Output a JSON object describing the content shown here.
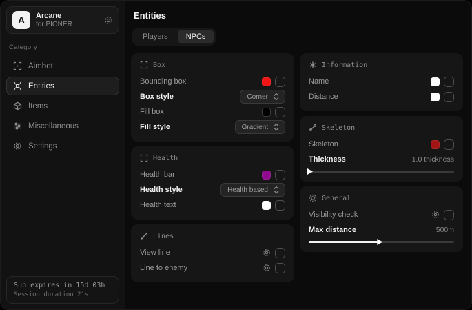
{
  "window": {
    "title": "Arcane"
  },
  "colors": {
    "accent_red": "#f01414",
    "accent_purple": "#8e0b8e",
    "skeleton_red": "#a31515",
    "swatch_white": "#ffffff",
    "swatch_black": "#000000",
    "card_bg": "#161616",
    "sidebar_bg": "#121212"
  },
  "sidebar": {
    "logo_letter": "A",
    "app_name": "Arcane",
    "app_subtitle": "for PIONER",
    "category_label": "Category",
    "items": [
      {
        "label": "Aimbot",
        "icon": "crosshair-icon",
        "active": false
      },
      {
        "label": "Entities",
        "icon": "entities-icon",
        "active": true
      },
      {
        "label": "Items",
        "icon": "cube-icon",
        "active": false
      },
      {
        "label": "Miscellaneous",
        "icon": "sliders-icon",
        "active": false
      },
      {
        "label": "Settings",
        "icon": "gear-icon",
        "active": false
      }
    ],
    "footer": {
      "line1": "Sub expires in 15d 03h",
      "line2": "Session duration 21s"
    }
  },
  "main": {
    "title": "Entities",
    "tabs": [
      {
        "label": "Players",
        "active": false
      },
      {
        "label": "NPCs",
        "active": true
      }
    ],
    "columns": [
      {
        "cards": [
          {
            "title": "Box",
            "icon": "scan-brackets-icon",
            "rows": [
              {
                "type": "color",
                "label": "Bounding box",
                "color": "#f01414",
                "checked": false
              },
              {
                "type": "select",
                "label": "Box style",
                "value": "Corner"
              },
              {
                "type": "color",
                "label": "Fill box",
                "color": "#000000",
                "checked": false
              },
              {
                "type": "select",
                "label": "Fill style",
                "value": "Gradient"
              }
            ]
          },
          {
            "title": "Health",
            "icon": "scan-brackets-icon",
            "rows": [
              {
                "type": "color",
                "label": "Health bar",
                "color": "#8e0b8e",
                "checked": false
              },
              {
                "type": "select",
                "label": "Health style",
                "value": "Health based"
              },
              {
                "type": "color",
                "label": "Health text",
                "color": "#ffffff",
                "checked": false
              }
            ]
          },
          {
            "title": "Lines",
            "icon": "pencil-line-icon",
            "rows": [
              {
                "type": "gear",
                "label": "View line",
                "checked": false
              },
              {
                "type": "gear",
                "label": "Line to enemy",
                "checked": false
              }
            ]
          }
        ]
      },
      {
        "cards": [
          {
            "title": "Information",
            "icon": "asterisk-icon",
            "rows": [
              {
                "type": "color",
                "label": "Name",
                "color": "#ffffff",
                "checked": false
              },
              {
                "type": "color",
                "label": "Distance",
                "color": "#ffffff",
                "checked": false
              }
            ]
          },
          {
            "title": "Skeleton",
            "icon": "bone-icon",
            "rows": [
              {
                "type": "color",
                "label": "Skeleton",
                "color": "#a31515",
                "checked": false
              },
              {
                "type": "slider",
                "label": "Thickness",
                "value": "1.0 thickness",
                "fill_percent": 0
              }
            ]
          },
          {
            "title": "General",
            "icon": "sun-icon",
            "rows": [
              {
                "type": "gear",
                "label": "Visibility check",
                "checked": false
              },
              {
                "type": "slider",
                "label": "Max distance",
                "value": "500m",
                "fill_percent": 48
              }
            ]
          }
        ]
      }
    ]
  }
}
